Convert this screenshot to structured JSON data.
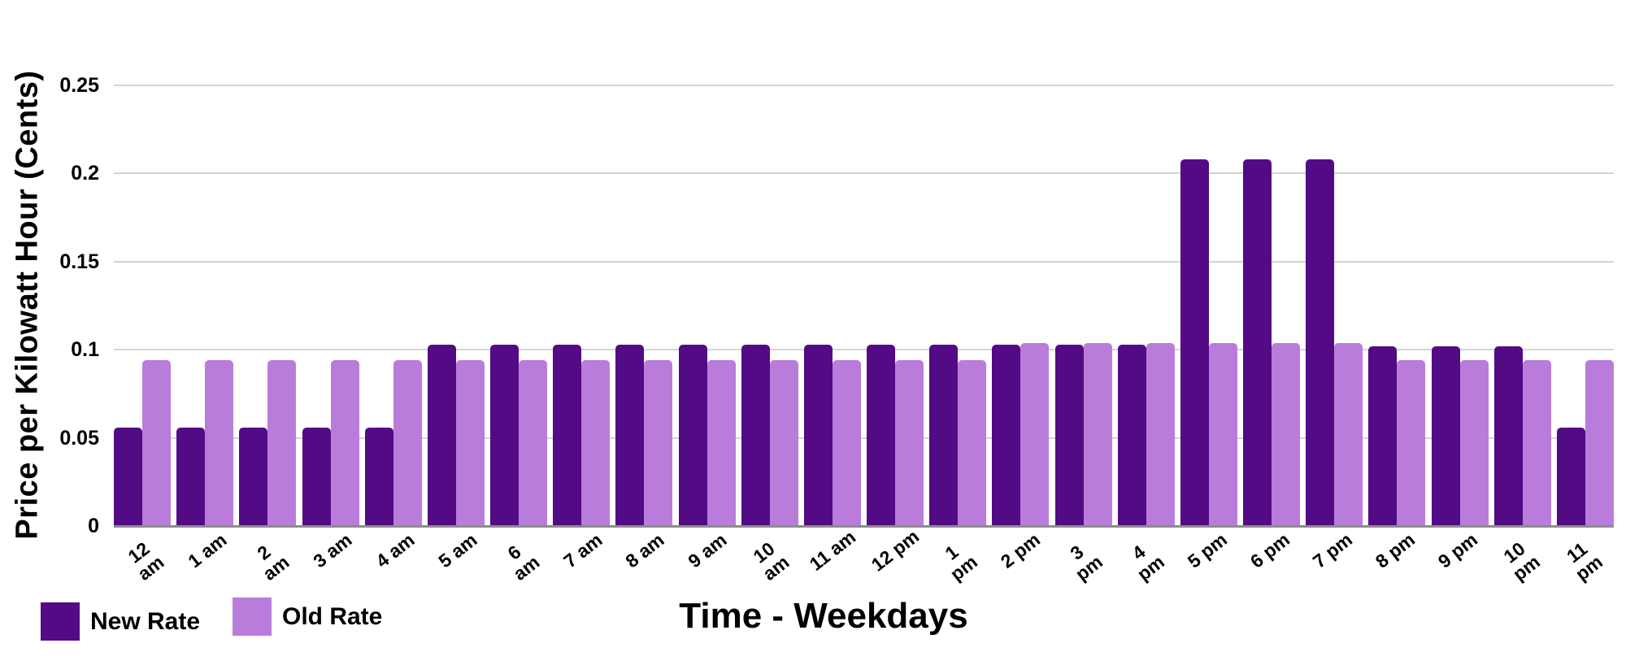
{
  "chart_data": {
    "type": "bar",
    "title": "",
    "xlabel": "Time - Weekdays",
    "ylabel": "Price per Kilowatt Hour (Cents)",
    "categories": [
      "12 am",
      "1 am",
      "2 am",
      "3 am",
      "4 am",
      "5 am",
      "6 am",
      "7 am",
      "8 am",
      "9 am",
      "10 am",
      "11 am",
      "12 pm",
      "1 pm",
      "2 pm",
      "3 pm",
      "4 pm",
      "5 pm",
      "6 pm",
      "7 pm",
      "8 pm",
      "9 pm",
      "10 pm",
      "11 pm"
    ],
    "tick_display": [
      "12\nam",
      "1 am",
      "2\nam",
      "3 am",
      "4 am",
      "5 am",
      "6\nam",
      "7 am",
      "8 am",
      "9 am",
      "10\nam",
      "11 am",
      "12 pm",
      "1\npm",
      "2 pm",
      "3\npm",
      "4\npm",
      "5 pm",
      "6 pm",
      "7 pm",
      "8 pm",
      "9 pm",
      "10\npm",
      "11\npm"
    ],
    "series": [
      {
        "name": "New Rate",
        "color": "#520A85",
        "values": [
          0.056,
          0.056,
          0.056,
          0.056,
          0.056,
          0.103,
          0.103,
          0.103,
          0.103,
          0.103,
          0.103,
          0.103,
          0.103,
          0.103,
          0.103,
          0.103,
          0.103,
          0.208,
          0.208,
          0.208,
          0.102,
          0.102,
          0.102,
          0.056
        ]
      },
      {
        "name": "Old Rate",
        "color": "#B97CDB",
        "values": [
          0.094,
          0.094,
          0.094,
          0.094,
          0.094,
          0.094,
          0.094,
          0.094,
          0.094,
          0.094,
          0.094,
          0.094,
          0.094,
          0.094,
          0.104,
          0.104,
          0.104,
          0.104,
          0.104,
          0.104,
          0.094,
          0.094,
          0.094,
          0.094
        ]
      }
    ],
    "y_ticks": [
      {
        "value": 0,
        "label": "0"
      },
      {
        "value": 0.05,
        "label": "0.05"
      },
      {
        "value": 0.1,
        "label": "0.1"
      },
      {
        "value": 0.15,
        "label": "0.15"
      },
      {
        "value": 0.2,
        "label": "0.2"
      },
      {
        "value": 0.25,
        "label": "0.25"
      }
    ],
    "ylim": [
      0,
      0.25
    ],
    "grid": true,
    "legend_position": "bottom-left",
    "colors": {
      "new_rate": "#520A85",
      "old_rate": "#B97CDB",
      "gridline": "#D4D4D4",
      "axis_line": "#8C8C8C",
      "text": "#000000"
    }
  }
}
